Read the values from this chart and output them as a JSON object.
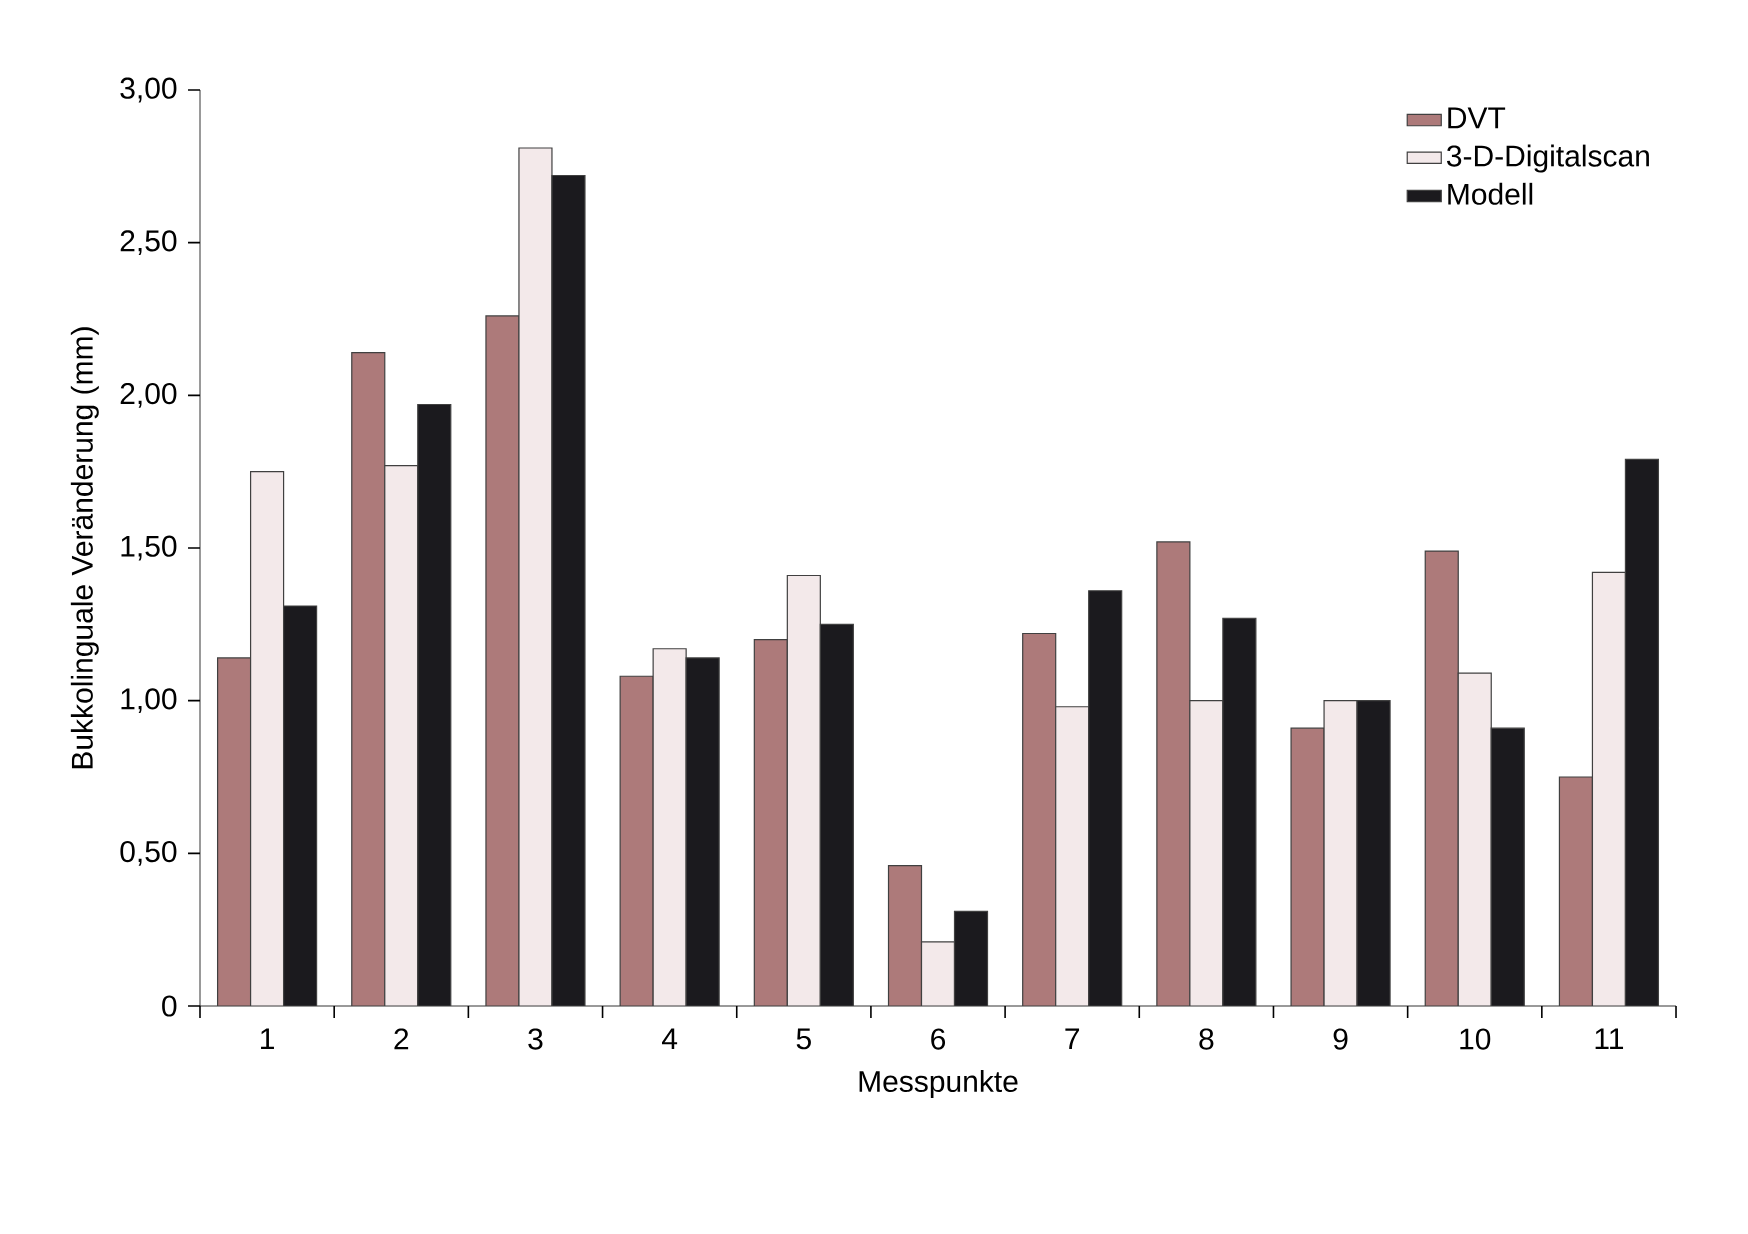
{
  "chart_data": {
    "type": "bar",
    "xlabel": "Messpunkte",
    "ylabel": "Bukkolinguale Veränderung (mm)",
    "categories": [
      "1",
      "2",
      "3",
      "4",
      "5",
      "6",
      "7",
      "8",
      "9",
      "10",
      "11"
    ],
    "series": [
      {
        "name": "DVT",
        "color": "#ad7a7a",
        "values": [
          1.14,
          2.14,
          2.26,
          1.08,
          1.2,
          0.46,
          1.22,
          1.52,
          0.91,
          1.49,
          0.75
        ]
      },
      {
        "name": "3-D-Digitalscan",
        "color": "#f3e9ea",
        "values": [
          1.75,
          1.77,
          2.81,
          1.17,
          1.41,
          0.21,
          0.98,
          1.0,
          1.0,
          1.09,
          1.42
        ]
      },
      {
        "name": "Modell",
        "color": "#1b1a1e",
        "values": [
          1.31,
          1.97,
          2.72,
          1.14,
          1.25,
          0.31,
          1.36,
          1.27,
          1.0,
          0.91,
          1.79
        ]
      }
    ],
    "ylim": [
      0,
      3
    ],
    "yticks": [
      0,
      {
        "value": 0.5,
        "label": "0,50"
      },
      {
        "value": 1,
        "label": "1,00"
      },
      {
        "value": 1.5,
        "label": "1,50"
      },
      {
        "value": 2,
        "label": "2,00"
      },
      {
        "value": 2.5,
        "label": "2,50"
      },
      {
        "value": 3,
        "label": "3,00"
      }
    ],
    "grid": false,
    "legend": "top right"
  }
}
